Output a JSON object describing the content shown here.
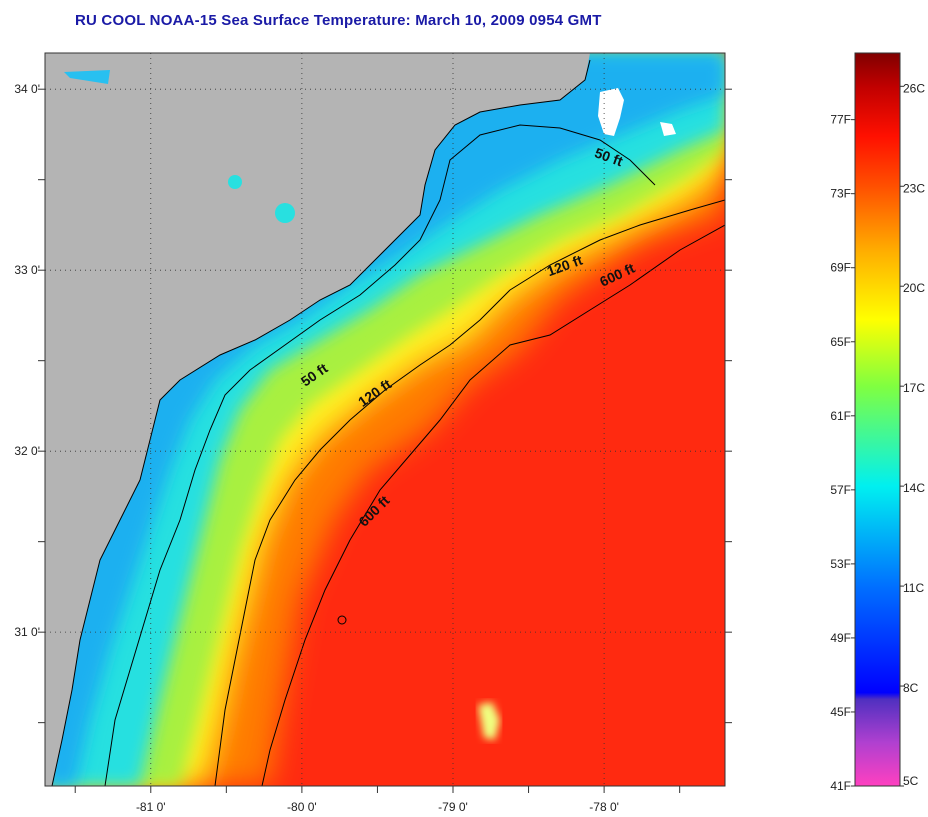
{
  "title": "RU COOL  NOAA-15  Sea Surface Temperature:  March 10, 2009 0954 GMT",
  "map": {
    "lon_range": [
      -81.7,
      -77.2
    ],
    "lat_range": [
      30.15,
      34.2
    ],
    "lon_ticks": [
      {
        "value": -81,
        "label": "-81 0'"
      },
      {
        "value": -80,
        "label": "-80 0'"
      },
      {
        "value": -79,
        "label": "-79 0'"
      },
      {
        "value": -78,
        "label": "-78 0'"
      }
    ],
    "lat_ticks": [
      {
        "value": 34,
        "label": "34 0'"
      },
      {
        "value": 33,
        "label": "33 0'"
      },
      {
        "value": 32,
        "label": "32 0'"
      },
      {
        "value": 31,
        "label": "31 0'"
      }
    ],
    "contour_labels": [
      {
        "text": "50 ft",
        "lon": -77.98,
        "lat": 33.6
      },
      {
        "text": "120 ft",
        "lon": -78.25,
        "lat": 33.0
      },
      {
        "text": "600 ft",
        "lon": -77.9,
        "lat": 32.95
      },
      {
        "text": "50 ft",
        "lon": -79.9,
        "lat": 32.4
      },
      {
        "text": "120 ft",
        "lon": -79.5,
        "lat": 32.3
      },
      {
        "text": "600 ft",
        "lon": -79.5,
        "lat": 31.65
      }
    ],
    "colors": {
      "land": "#b4b4b4",
      "cold": "#0aaaf0",
      "cool": "#1ee0e6",
      "mid": "#c8f040",
      "warm": "#ffc800",
      "hot": "#ff2a10",
      "cloud": "#ffffff"
    }
  },
  "colorbar": {
    "min_c": 5,
    "max_c": 27,
    "celsius_labels": [
      "26C",
      "23C",
      "20C",
      "17C",
      "14C",
      "11C",
      "8C",
      "5C"
    ],
    "fahrenheit_labels": [
      "77F",
      "73F",
      "69F",
      "65F",
      "61F",
      "57F",
      "53F",
      "49F",
      "45F",
      "41F"
    ],
    "stops": [
      {
        "c": 5,
        "color": "#ff40c0"
      },
      {
        "c": 6.3,
        "color": "#b040d0"
      },
      {
        "c": 7.6,
        "color": "#5030c0"
      },
      {
        "c": 7.8,
        "color": "#0000ff"
      },
      {
        "c": 11,
        "color": "#0070ff"
      },
      {
        "c": 14,
        "color": "#00f0f0"
      },
      {
        "c": 17,
        "color": "#80ff40"
      },
      {
        "c": 19,
        "color": "#ffff00"
      },
      {
        "c": 21,
        "color": "#ffb000"
      },
      {
        "c": 23,
        "color": "#ff5000"
      },
      {
        "c": 24.5,
        "color": "#ff1000"
      },
      {
        "c": 26,
        "color": "#c00000"
      },
      {
        "c": 27,
        "color": "#800000"
      }
    ]
  }
}
